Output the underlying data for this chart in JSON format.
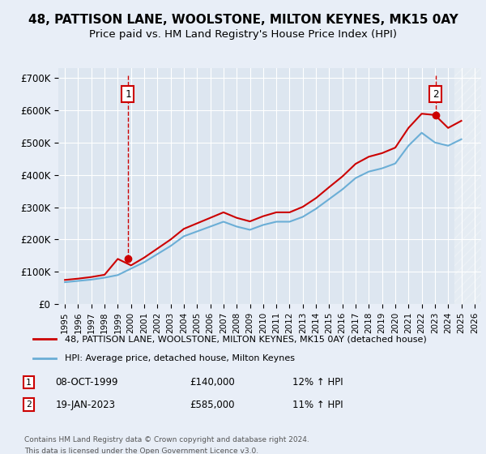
{
  "title": "48, PATTISON LANE, WOOLSTONE, MILTON KEYNES, MK15 0AY",
  "subtitle": "Price paid vs. HM Land Registry's House Price Index (HPI)",
  "legend_line1": "48, PATTISON LANE, WOOLSTONE, MILTON KEYNES, MK15 0AY (detached house)",
  "legend_line2": "HPI: Average price, detached house, Milton Keynes",
  "footnote1": "Contains HM Land Registry data © Crown copyright and database right 2024.",
  "footnote2": "This data is licensed under the Open Government Licence v3.0.",
  "sale1_label": "1",
  "sale1_date": "08-OCT-1999",
  "sale1_price": "£140,000",
  "sale1_hpi": "12% ↑ HPI",
  "sale2_label": "2",
  "sale2_date": "19-JAN-2023",
  "sale2_price": "£585,000",
  "sale2_hpi": "11% ↑ HPI",
  "hpi_color": "#6baed6",
  "price_color": "#cc0000",
  "background_color": "#e8eef7",
  "plot_bg_color": "#dde6f0",
  "ylim": [
    0,
    730000
  ],
  "yticks": [
    0,
    100000,
    200000,
    300000,
    400000,
    500000,
    600000,
    700000
  ],
  "ytick_labels": [
    "£0",
    "£100K",
    "£200K",
    "£300K",
    "£400K",
    "£500K",
    "£600K",
    "£700K"
  ],
  "hpi_years": [
    1995,
    1996,
    1997,
    1998,
    1999,
    2000,
    2001,
    2002,
    2003,
    2004,
    2005,
    2006,
    2007,
    2008,
    2009,
    2010,
    2011,
    2012,
    2013,
    2014,
    2015,
    2016,
    2017,
    2018,
    2019,
    2020,
    2021,
    2022,
    2023,
    2024,
    2025
  ],
  "hpi_values": [
    68000,
    72000,
    76000,
    82000,
    90000,
    110000,
    130000,
    155000,
    180000,
    210000,
    225000,
    240000,
    255000,
    240000,
    230000,
    245000,
    255000,
    255000,
    270000,
    295000,
    325000,
    355000,
    390000,
    410000,
    420000,
    435000,
    490000,
    530000,
    500000,
    490000,
    510000
  ],
  "price_years": [
    1995,
    1996,
    1997,
    1998,
    1999,
    2000,
    2001,
    2002,
    2003,
    2004,
    2005,
    2006,
    2007,
    2008,
    2009,
    2010,
    2011,
    2012,
    2013,
    2014,
    2015,
    2016,
    2017,
    2018,
    2019,
    2020,
    2021,
    2022,
    2023,
    2024,
    2025
  ],
  "price_values": [
    75000,
    79000,
    84000,
    91000,
    140000,
    120000,
    144000,
    172000,
    200000,
    233000,
    250000,
    267000,
    284000,
    267000,
    256000,
    272000,
    284000,
    284000,
    301000,
    328000,
    362000,
    395000,
    434000,
    456000,
    467000,
    484000,
    545000,
    589000,
    585000,
    545000,
    567000
  ],
  "sale1_x": 1999.77,
  "sale1_y": 140000,
  "sale2_x": 2023.05,
  "sale2_y": 585000,
  "hatch_start": 2024.5,
  "xlim_left": 1994.5,
  "xlim_right": 2026.5
}
